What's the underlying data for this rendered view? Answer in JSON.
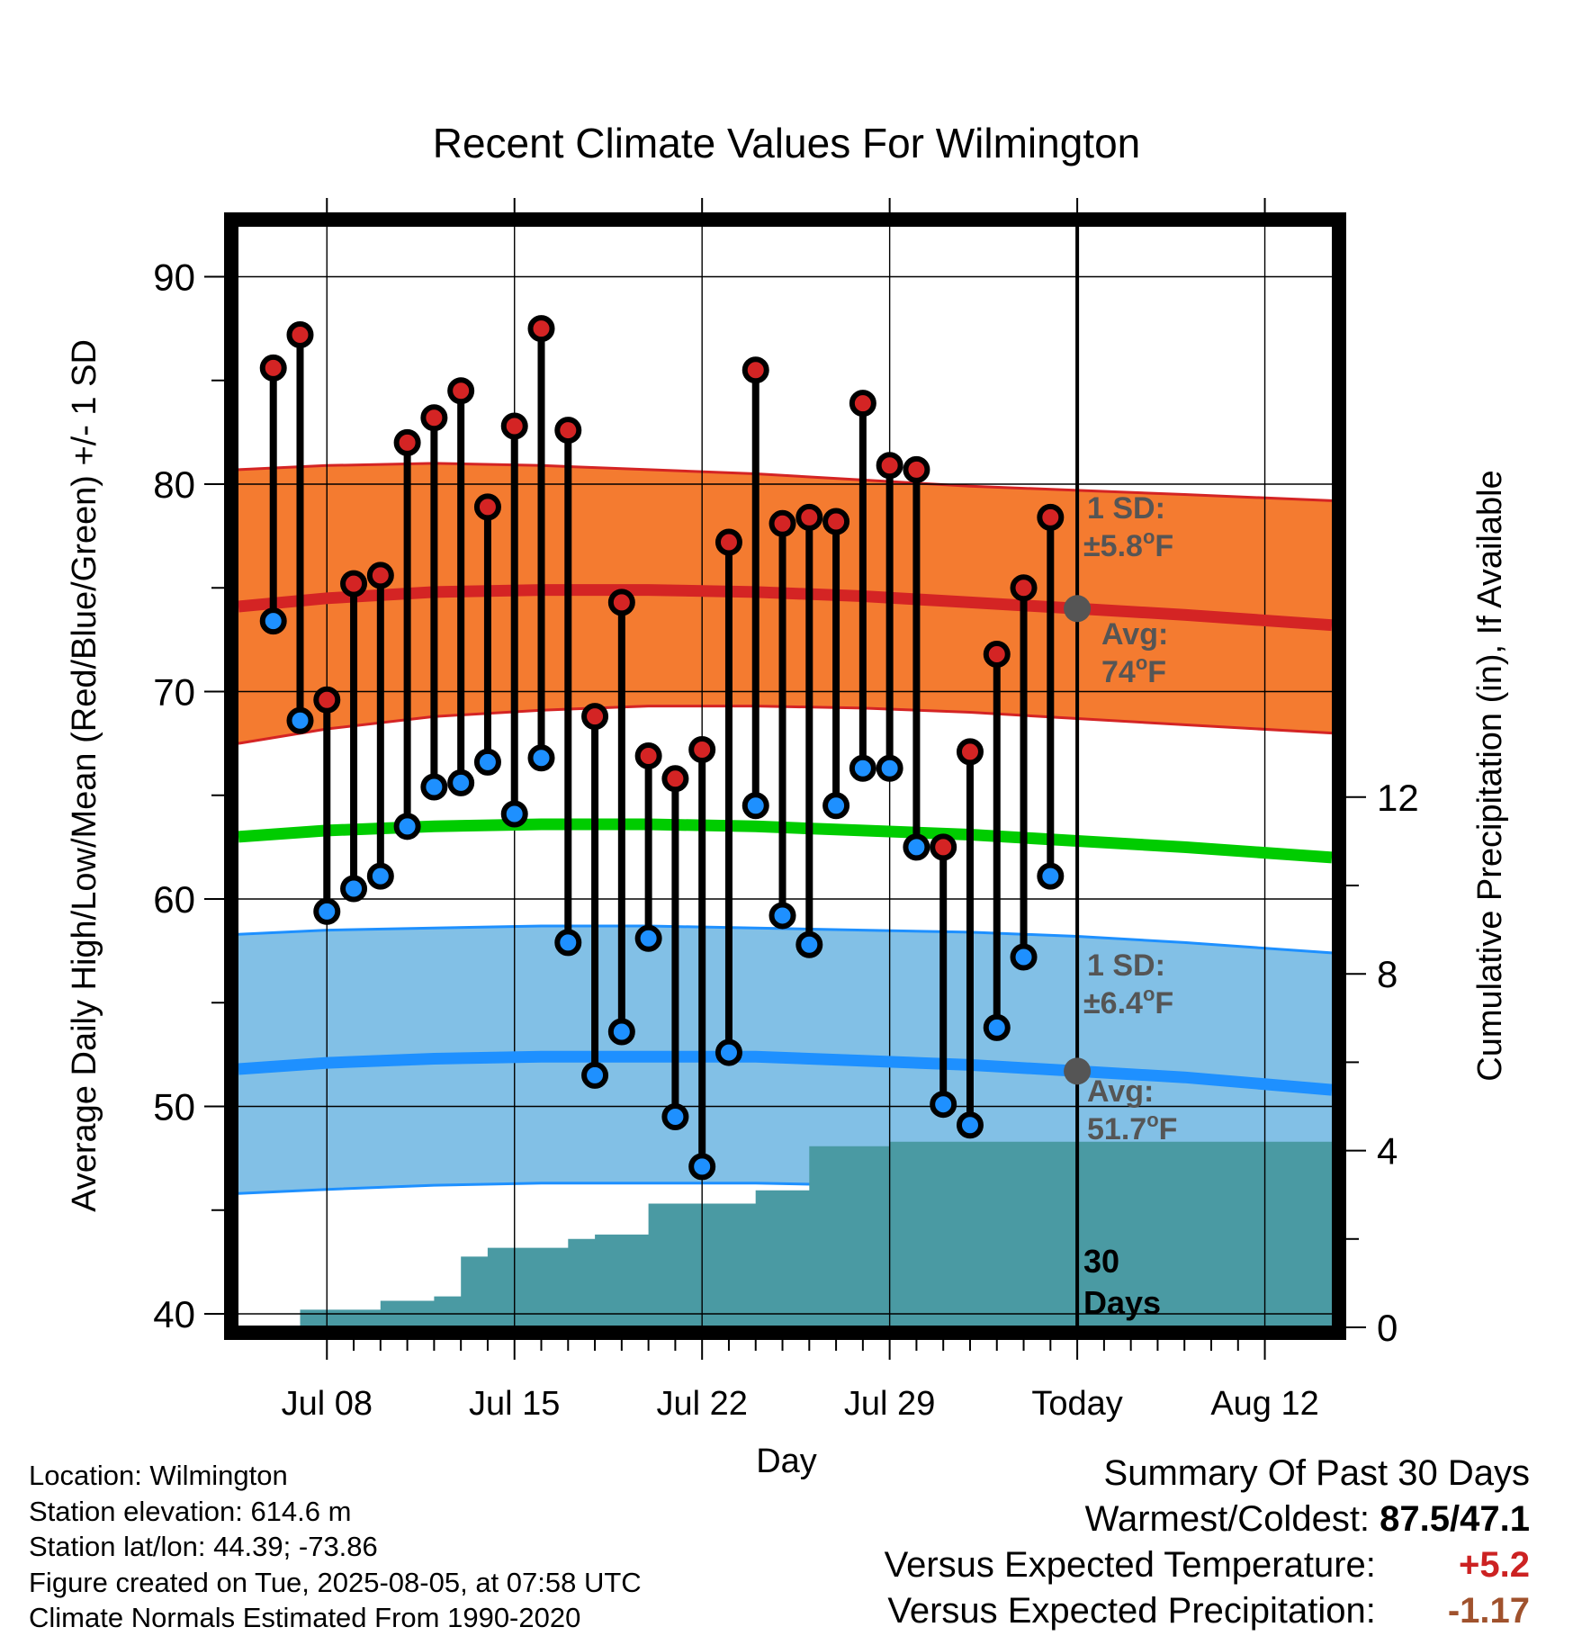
{
  "chart_data": {
    "type": "range-dot",
    "title": "Recent Climate Values For Wilmington",
    "xlabel": "Day",
    "ylabel": "Average Daily High/Low/Mean (Red/Blue/Green) +/- 1 SD",
    "y2label": "Cumulative Precipitation (in), If Available",
    "ylim": [
      39.5,
      92.5
    ],
    "y2lim": [
      0,
      15.8
    ],
    "yticks": [
      "40",
      "50",
      "60",
      "70",
      "80",
      "90"
    ],
    "y2ticks": [
      "0",
      "4",
      "8",
      "12"
    ],
    "xticks": [
      {
        "day": 8,
        "label": "Jul 08"
      },
      {
        "day": 15,
        "label": "Jul 15"
      },
      {
        "day": 22,
        "label": "Jul 22"
      },
      {
        "day": 29,
        "label": "Jul 29"
      },
      {
        "day": 36,
        "label": "Today"
      },
      {
        "day": 43,
        "label": "Aug 12"
      }
    ],
    "xlim": [
      4.7,
      45.5
    ],
    "today_day": 36,
    "days": [
      6,
      7,
      8,
      9,
      10,
      11,
      12,
      13,
      14,
      15,
      16,
      17,
      18,
      19,
      20,
      21,
      22,
      23,
      24,
      25,
      26,
      27,
      28,
      29,
      30,
      31,
      32,
      33,
      34,
      35
    ],
    "highs": [
      85.6,
      87.2,
      69.6,
      75.2,
      75.6,
      82.0,
      83.2,
      84.5,
      78.9,
      82.8,
      87.5,
      82.6,
      68.8,
      74.3,
      66.9,
      65.8,
      67.2,
      77.2,
      85.5,
      78.1,
      78.4,
      78.2,
      83.9,
      80.9,
      80.7,
      62.5,
      67.1,
      71.8,
      75.0,
      78.4
    ],
    "lows": [
      73.4,
      68.6,
      59.4,
      60.5,
      61.1,
      63.5,
      65.4,
      65.6,
      66.6,
      64.1,
      66.8,
      57.9,
      51.5,
      53.6,
      58.1,
      49.5,
      47.1,
      52.6,
      64.5,
      59.2,
      57.8,
      64.5,
      66.3,
      66.3,
      62.5,
      50.1,
      49.1,
      53.8,
      57.2,
      61.1
    ],
    "normals": {
      "days": [
        4.7,
        8,
        12,
        16,
        20,
        24,
        28,
        32,
        36,
        40,
        45.5
      ],
      "high_mean": [
        74.1,
        74.5,
        74.8,
        74.9,
        74.9,
        74.8,
        74.6,
        74.3,
        74.0,
        73.7,
        73.2
      ],
      "high_upper": [
        80.7,
        80.9,
        81.0,
        80.9,
        80.7,
        80.5,
        80.2,
        79.9,
        79.7,
        79.5,
        79.2
      ],
      "high_lower": [
        67.5,
        68.2,
        68.8,
        69.1,
        69.3,
        69.3,
        69.2,
        69.0,
        68.7,
        68.4,
        68.0
      ],
      "mean": [
        63.0,
        63.3,
        63.5,
        63.6,
        63.6,
        63.5,
        63.3,
        63.1,
        62.8,
        62.5,
        62.0
      ],
      "low_mean": [
        51.8,
        52.1,
        52.3,
        52.4,
        52.4,
        52.4,
        52.2,
        52.0,
        51.7,
        51.4,
        50.8
      ],
      "low_upper": [
        58.3,
        58.5,
        58.6,
        58.7,
        58.7,
        58.6,
        58.5,
        58.4,
        58.2,
        57.9,
        57.4
      ],
      "low_lower": [
        45.8,
        46.0,
        46.2,
        46.3,
        46.3,
        46.3,
        46.2,
        46.0,
        45.8,
        45.6,
        45.2
      ]
    },
    "precip": {
      "days": [
        4.7,
        6,
        7,
        8,
        9,
        10,
        11,
        12,
        13,
        14,
        15,
        16,
        17,
        18,
        19,
        20,
        21,
        22,
        23,
        24,
        25,
        26,
        27,
        28,
        29,
        30,
        31,
        32,
        33,
        34,
        35,
        36,
        45.5
      ],
      "cumulative": [
        0,
        0,
        0.4,
        0.4,
        0.4,
        0.6,
        0.6,
        0.7,
        1.6,
        1.8,
        1.8,
        1.8,
        2.0,
        2.1,
        2.1,
        2.8,
        2.8,
        2.8,
        2.8,
        3.1,
        3.1,
        4.1,
        4.1,
        4.1,
        4.2,
        4.2,
        4.2,
        4.2,
        4.2,
        4.2,
        4.2,
        4.2,
        4.2
      ]
    },
    "annotations": {
      "high_sd_label": "1 SD:",
      "high_sd_value": "±5.8",
      "high_avg_label": "Avg:",
      "high_avg_value": "74",
      "low_sd_label": "1 SD:",
      "low_sd_value": "±6.4",
      "low_avg_label": "Avg:",
      "low_avg_value": "51.7",
      "deg_symbol": "o",
      "unit": "F",
      "days_number": "30",
      "days_label": "Days"
    },
    "colors": {
      "high_band": "#f47b30",
      "high_line": "#d42424",
      "mean_line": "#00cc00",
      "low_band": "#82c0e6",
      "low_line": "#1e90ff",
      "precip_area": "#4a9aa3",
      "high_dot": "#d42424",
      "low_dot": "#1e90ff",
      "annotation_text": "#555555",
      "avg_marker": "#555555",
      "positive_anomaly": "#cc2222",
      "negative_anomaly": "#a0522d"
    }
  },
  "info": {
    "location": "Location: Wilmington",
    "elevation": "Station elevation: 614.6 m",
    "latlon": "Station lat/lon: 44.39; -73.86",
    "created": "Figure created on Tue, 2025-08-05, at 07:58 UTC",
    "normals": "Climate Normals Estimated From 1990-2020"
  },
  "summary": {
    "title": "Summary Of Past 30 Days",
    "warmest_coldest_label": "Warmest/Coldest:",
    "warmest_coldest_value": "87.5/47.1",
    "temp_label": "Versus Expected Temperature:",
    "temp_value": "+5.2",
    "precip_label": "Versus Expected Precipitation:",
    "precip_value": "-1.17"
  }
}
